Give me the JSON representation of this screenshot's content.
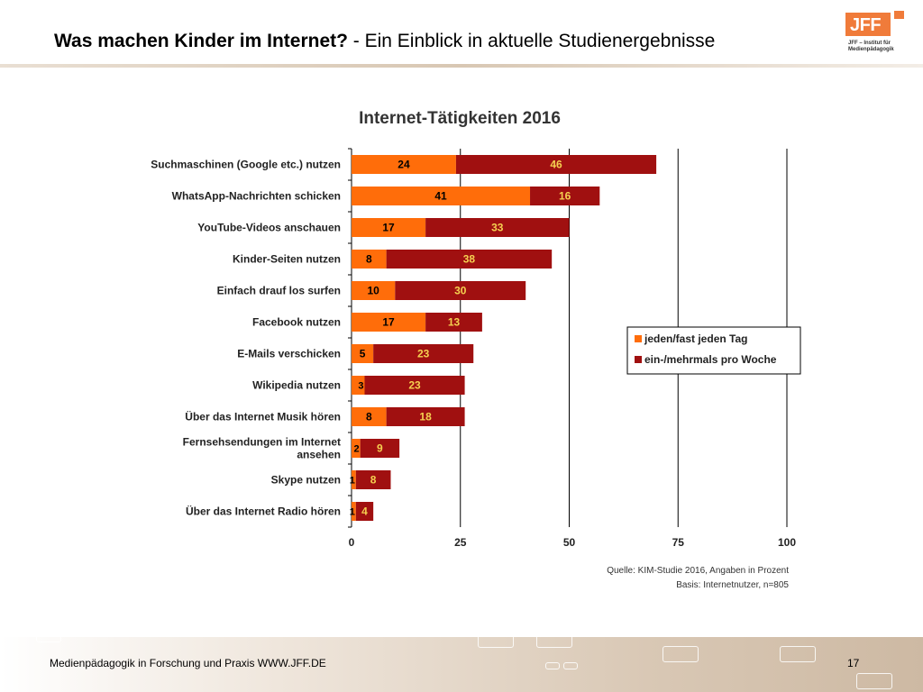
{
  "header": {
    "title_bold": "Was machen Kinder im Internet?",
    "title_rest": " - Ein Einblick in aktuelle Studienergebnisse"
  },
  "logo": {
    "text": "JFF",
    "subtitle_lines": [
      "JFF – Institut für",
      "Medienpädagogik"
    ]
  },
  "colors": {
    "accent": "#f07b3a",
    "series1": "#ff6d0a",
    "series2": "#a01010",
    "footer": "#d9c8b5"
  },
  "chart_data": {
    "type": "bar",
    "orientation": "horizontal",
    "stacked": true,
    "title": "Internet-Tätigkeiten 2016",
    "categories": [
      [
        "Suchmaschinen (Google etc.) nutzen"
      ],
      [
        "WhatsApp-Nachrichten schicken"
      ],
      [
        "YouTube-Videos anschauen"
      ],
      [
        "Kinder-Seiten nutzen"
      ],
      [
        "Einfach drauf los surfen"
      ],
      [
        "Facebook nutzen"
      ],
      [
        "E-Mails verschicken"
      ],
      [
        "Wikipedia nutzen"
      ],
      [
        "Über das Internet Musik hören"
      ],
      [
        "Fernsehsendungen im Internet",
        "ansehen"
      ],
      [
        "Skype nutzen"
      ],
      [
        "Über das Internet Radio hören"
      ]
    ],
    "series": [
      {
        "name": "jeden/fast jeden Tag",
        "color": "#ff6d0a",
        "values": [
          24,
          41,
          17,
          8,
          10,
          17,
          5,
          3,
          8,
          2,
          1,
          1
        ]
      },
      {
        "name": "ein-/mehrmals pro Woche",
        "color": "#a01010",
        "values": [
          46,
          16,
          33,
          38,
          30,
          13,
          23,
          23,
          18,
          9,
          8,
          4
        ]
      }
    ],
    "xlim": [
      0,
      100
    ],
    "xticks": [
      0,
      25,
      50,
      75,
      100
    ],
    "grid": true,
    "legend_position": "right",
    "source_lines": [
      "Quelle: KIM-Studie 2016, Angaben in Prozent",
      "Basis: Internetnutzer, n=805"
    ]
  },
  "footer": {
    "text": "Medienpädagogik in Forschung und Praxis WWW.JFF.DE",
    "page_number": "17"
  }
}
